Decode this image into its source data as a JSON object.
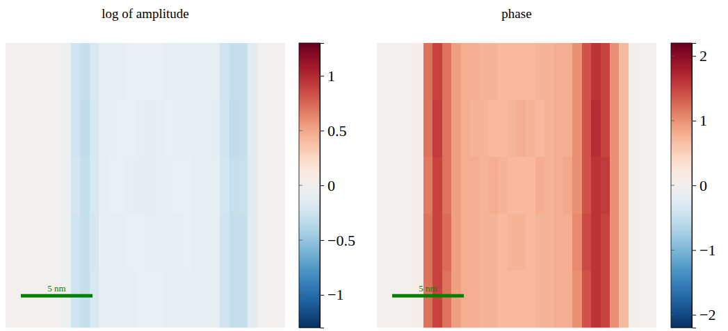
{
  "chart_data": [
    {
      "type": "heatmap",
      "title": "log of amplitude",
      "tick_labels": false,
      "xlim": [
        0,
        19.5
      ],
      "ylim": [
        0,
        19.9
      ],
      "scale_bar": {
        "value": 5,
        "label": "5 nm"
      },
      "zlim": [
        -1.3,
        1.3
      ],
      "zticks": [
        {
          "value": -1,
          "label": "−1"
        },
        {
          "value": -0.5,
          "label": "−0.5"
        },
        0,
        0.5,
        1
      ],
      "cells": [
        [
          0,
          0,
          0,
          0,
          0,
          0,
          -0.05,
          -0.25,
          -0.3,
          -0.2,
          -0.1,
          -0.1,
          -0.1,
          -0.08,
          -0.08,
          -0.08,
          -0.08,
          -0.1,
          -0.1,
          -0.1,
          -0.1,
          -0.1,
          -0.1,
          -0.25,
          -0.3,
          -0.3,
          -0.15,
          -0.02,
          0,
          0
        ],
        [
          0,
          0,
          0,
          0,
          0,
          0,
          -0.05,
          -0.25,
          -0.32,
          -0.2,
          -0.1,
          -0.1,
          -0.08,
          -0.08,
          -0.1,
          -0.12,
          -0.1,
          -0.08,
          -0.1,
          -0.1,
          -0.1,
          -0.1,
          -0.12,
          -0.25,
          -0.32,
          -0.3,
          -0.15,
          -0.02,
          0,
          0
        ],
        [
          0,
          0,
          0,
          0,
          0,
          0,
          -0.05,
          -0.22,
          -0.3,
          -0.2,
          -0.1,
          -0.08,
          -0.08,
          -0.1,
          -0.12,
          -0.12,
          -0.1,
          -0.1,
          -0.08,
          -0.08,
          -0.1,
          -0.1,
          -0.1,
          -0.22,
          -0.3,
          -0.28,
          -0.15,
          -0.02,
          0,
          0
        ],
        [
          0,
          0,
          0,
          0,
          0,
          0,
          -0.05,
          -0.25,
          -0.3,
          -0.22,
          -0.1,
          -0.1,
          -0.1,
          -0.08,
          -0.08,
          -0.1,
          -0.1,
          -0.1,
          -0.1,
          -0.08,
          -0.1,
          -0.1,
          -0.1,
          -0.25,
          -0.3,
          -0.3,
          -0.15,
          -0.02,
          0,
          0
        ],
        [
          0,
          0,
          0,
          0,
          0,
          0,
          -0.05,
          -0.25,
          -0.3,
          -0.2,
          -0.1,
          -0.1,
          -0.1,
          -0.1,
          -0.08,
          -0.08,
          -0.08,
          -0.1,
          -0.1,
          -0.1,
          -0.1,
          -0.1,
          -0.1,
          -0.25,
          -0.3,
          -0.3,
          -0.15,
          -0.02,
          0,
          0
        ]
      ]
    },
    {
      "type": "heatmap",
      "title": "phase",
      "tick_labels": false,
      "xlim": [
        0,
        19.5
      ],
      "ylim": [
        0,
        19.9
      ],
      "scale_bar": {
        "value": 5,
        "label": "5 nm"
      },
      "zlim": [
        -2.2,
        2.2
      ],
      "zticks": [
        {
          "value": -2,
          "label": "−2"
        },
        {
          "value": -1,
          "label": "−1"
        },
        0,
        1,
        2
      ],
      "cells": [
        [
          0,
          0,
          0,
          0,
          0.1,
          1.2,
          1.5,
          1.2,
          0.9,
          0.8,
          0.8,
          0.75,
          0.75,
          0.7,
          0.7,
          0.7,
          0.7,
          0.75,
          0.75,
          0.8,
          0.8,
          1.0,
          1.4,
          1.6,
          1.5,
          1.0,
          0.7,
          0.05,
          0,
          0
        ],
        [
          0,
          0,
          0,
          0,
          0.1,
          1.2,
          1.55,
          1.2,
          0.9,
          0.8,
          0.75,
          0.75,
          0.7,
          0.7,
          0.75,
          0.8,
          0.75,
          0.7,
          0.75,
          0.8,
          0.8,
          1.0,
          1.4,
          1.65,
          1.5,
          1.0,
          0.7,
          0.05,
          0,
          0
        ],
        [
          0,
          0,
          0,
          0,
          0.1,
          1.15,
          1.5,
          1.2,
          0.9,
          0.8,
          0.8,
          0.75,
          0.8,
          0.75,
          0.7,
          0.7,
          0.7,
          0.8,
          0.75,
          0.8,
          0.85,
          1.0,
          1.4,
          1.6,
          1.55,
          1.0,
          0.7,
          0.05,
          0,
          0
        ],
        [
          0,
          0,
          0,
          0,
          0.1,
          1.2,
          1.5,
          1.25,
          0.9,
          0.8,
          0.8,
          0.75,
          0.75,
          0.7,
          0.75,
          0.75,
          0.7,
          0.75,
          0.75,
          0.8,
          0.8,
          1.05,
          1.45,
          1.6,
          1.5,
          1.0,
          0.7,
          0.05,
          0,
          0
        ],
        [
          0,
          0,
          0,
          0,
          0.1,
          1.2,
          1.5,
          1.2,
          0.9,
          0.8,
          0.8,
          0.75,
          0.75,
          0.7,
          0.7,
          0.7,
          0.7,
          0.75,
          0.75,
          0.8,
          0.8,
          1.0,
          1.4,
          1.6,
          1.5,
          1.0,
          0.7,
          0.05,
          0,
          0
        ]
      ]
    }
  ]
}
